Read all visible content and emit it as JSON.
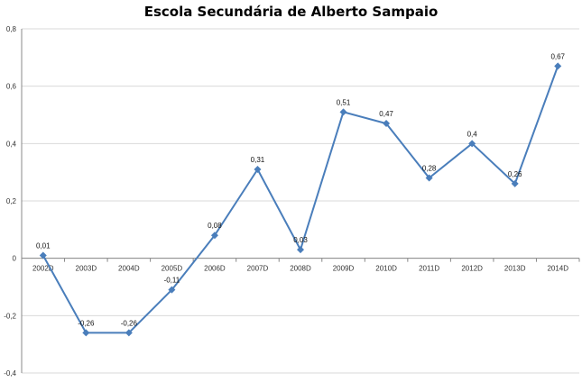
{
  "chart_data": {
    "type": "line",
    "title": "Escola Secundária de Alberto Sampaio",
    "categories": [
      "2002D",
      "2003D",
      "2004D",
      "2005D",
      "2006D",
      "2007D",
      "2008D",
      "2009D",
      "2010D",
      "2011D",
      "2012D",
      "2013D",
      "2014D"
    ],
    "values": [
      0.01,
      -0.26,
      -0.26,
      -0.11,
      0.08,
      0.31,
      0.03,
      0.51,
      0.47,
      0.28,
      0.4,
      0.26,
      0.67
    ],
    "data_labels": [
      "0,01",
      "-0,26",
      "-0,26",
      "-0,11",
      "0,08",
      "0,31",
      "0,03",
      "0,51",
      "0,47",
      "0,28",
      "0,4",
      "0,26",
      "0,67"
    ],
    "y_ticks": [
      -0.4,
      -0.2,
      0,
      0.2,
      0.4,
      0.6,
      0.8
    ],
    "y_tick_labels": [
      "-0,4",
      "-0,2",
      "0",
      "0,2",
      "0,4",
      "0,6",
      "0,8"
    ],
    "ylim": [
      -0.4,
      0.8
    ],
    "grid": true,
    "legend": "none",
    "colors": {
      "series": "#4a7ebb",
      "grid": "#d9d9d9",
      "axis": "#888888"
    }
  }
}
